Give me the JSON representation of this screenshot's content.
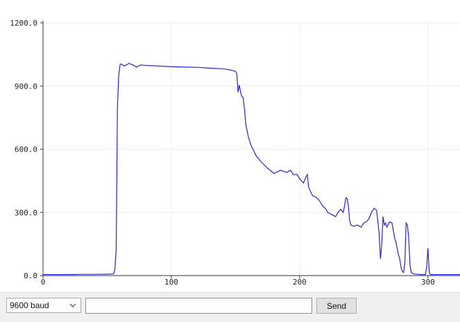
{
  "chart_data": {
    "type": "line",
    "title": "",
    "xlabel": "",
    "ylabel": "",
    "xlim": [
      0,
      325
    ],
    "ylim": [
      0,
      1200
    ],
    "x_ticks": [
      0,
      100,
      200,
      300
    ],
    "y_ticks": [
      0,
      300,
      600,
      900,
      1200
    ],
    "x_tick_labels": [
      "0",
      "100",
      "200",
      "300"
    ],
    "y_tick_labels": [
      "0.0",
      "300.0",
      "600.0",
      "900.0",
      "1200.0"
    ],
    "grid": true,
    "line_color": "#2222ee",
    "series": [
      {
        "x": [
          0,
          10,
          20,
          30,
          40,
          50,
          55,
          56,
          57,
          58,
          59,
          60,
          61,
          63,
          65,
          67,
          70,
          73,
          76,
          80,
          90,
          100,
          110,
          120,
          130,
          140,
          145,
          150,
          151,
          152,
          153,
          154,
          155,
          156,
          157,
          158,
          160,
          162,
          164,
          166,
          168,
          170,
          175,
          180,
          185,
          190,
          193,
          195,
          198,
          200,
          203,
          205,
          206,
          207,
          208,
          210,
          212,
          215,
          218,
          220,
          222,
          225,
          228,
          230,
          232,
          234,
          235,
          236,
          237,
          238,
          239,
          240,
          242,
          245,
          248,
          250,
          252,
          254,
          256,
          258,
          260,
          262,
          263,
          264,
          265,
          266,
          267,
          268,
          270,
          272,
          274,
          275,
          276,
          277,
          278,
          279,
          280,
          281,
          282,
          283,
          284,
          285,
          286,
          287,
          288,
          289,
          290,
          292,
          294,
          296,
          298,
          299,
          300,
          301,
          302,
          304,
          310,
          320,
          325
        ],
        "y": [
          5,
          5,
          5,
          6,
          6,
          7,
          8,
          30,
          120,
          800,
          950,
          1000,
          1005,
          995,
          1000,
          1008,
          1000,
          990,
          1000,
          998,
          995,
          992,
          990,
          989,
          985,
          982,
          978,
          970,
          960,
          870,
          905,
          870,
          850,
          845,
          790,
          720,
          660,
          620,
          595,
          570,
          555,
          540,
          510,
          485,
          500,
          490,
          500,
          480,
          480,
          460,
          440,
          470,
          480,
          420,
          405,
          380,
          375,
          360,
          330,
          320,
          300,
          290,
          280,
          300,
          315,
          300,
          330,
          370,
          365,
          330,
          260,
          240,
          235,
          240,
          230,
          250,
          255,
          270,
          300,
          320,
          310,
          200,
          80,
          150,
          280,
          240,
          250,
          230,
          255,
          250,
          180,
          160,
          130,
          100,
          80,
          40,
          20,
          15,
          60,
          250,
          240,
          180,
          50,
          15,
          10,
          8,
          7,
          6,
          5,
          5,
          5,
          40,
          130,
          15,
          5,
          5,
          5,
          5,
          5
        ]
      }
    ]
  },
  "toolbar": {
    "baud_value": "9600 baud",
    "message_value": "",
    "send_label": "Send"
  },
  "icons": {
    "baud_dropdown": "chevron-down-icon"
  }
}
